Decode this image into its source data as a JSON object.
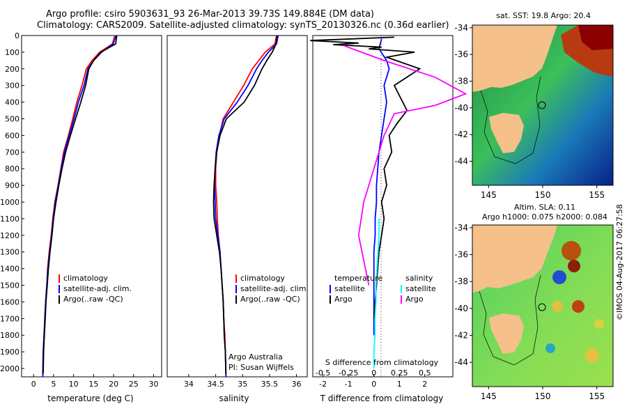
{
  "header": {
    "line1": "Argo profile: csiro 5903631_93 26-Mar-2013 39.73S 149.884E (DM data)",
    "line2": "Climatology: CARS2009. Satellite-adjusted climatology: synTS_20130326.nc (0.36d earlier)"
  },
  "colors": {
    "climatology": "#ff0000",
    "satellite": "#0000ff",
    "argo": "#000000",
    "argo_salinity": "#ff00ff",
    "satellite_salinity": "#00ffff",
    "land": "#f5c08a"
  },
  "chart_data": [
    {
      "type": "line",
      "id": "temperature",
      "xlabel": "temperature (deg C)",
      "ylabel": "",
      "xlim": [
        -3,
        32
      ],
      "ylim": [
        2050,
        0
      ],
      "xticks": [
        "0",
        "5",
        "10",
        "15",
        "20",
        "25",
        "30"
      ],
      "xtick_values": [
        0,
        5,
        10,
        15,
        20,
        25,
        30
      ],
      "yticks": [
        "0",
        "100",
        "200",
        "300",
        "400",
        "500",
        "600",
        "700",
        "800",
        "900",
        "1000",
        "1100",
        "1200",
        "1300",
        "1400",
        "1500",
        "1600",
        "1700",
        "1800",
        "1900",
        "2000"
      ],
      "ytick_values": [
        0,
        100,
        200,
        300,
        400,
        500,
        600,
        700,
        800,
        900,
        1000,
        1100,
        1200,
        1300,
        1400,
        1500,
        1600,
        1700,
        1800,
        1900,
        2000
      ],
      "legend": [
        "climatology",
        "satellite-adj. clim.",
        "Argo(..raw -QC)"
      ],
      "series": [
        {
          "name": "climatology",
          "x": [
            20.3,
            19.7,
            16.5,
            14.6,
            13.2,
            12.1,
            10.8,
            9.8,
            8.7,
            7.5,
            6.8,
            6.1,
            5.3,
            4.8,
            4.4,
            3.9,
            3.5,
            3.3,
            3.0,
            2.8,
            2.6,
            2.4,
            2.3
          ],
          "y": [
            0,
            50,
            100,
            150,
            200,
            300,
            400,
            500,
            600,
            700,
            800,
            900,
            1000,
            1100,
            1200,
            1300,
            1400,
            1500,
            1600,
            1700,
            1800,
            1900,
            2050
          ]
        },
        {
          "name": "satellite-adj. clim.",
          "x": [
            20.6,
            19.9,
            17.0,
            15.0,
            13.6,
            12.6,
            11.2,
            10.1,
            8.9,
            7.7,
            6.9,
            6.2,
            5.4,
            4.9,
            4.5,
            4.0,
            3.6,
            3.3,
            3.0,
            2.8,
            2.6,
            2.4,
            2.3
          ],
          "y": [
            0,
            50,
            100,
            150,
            200,
            300,
            400,
            500,
            600,
            700,
            800,
            900,
            1000,
            1100,
            1200,
            1300,
            1400,
            1500,
            1600,
            1700,
            1800,
            1900,
            2050
          ]
        },
        {
          "name": "Argo(..raw -QC)",
          "x": [
            20.8,
            20.5,
            16.8,
            15.0,
            13.8,
            13.0,
            11.8,
            10.5,
            9.2,
            8.0,
            7.1,
            6.3,
            5.6,
            5.0,
            4.6,
            4.1,
            3.7,
            3.4,
            3.1,
            2.9,
            2.7,
            2.5,
            2.4
          ],
          "y": [
            0,
            50,
            100,
            150,
            200,
            300,
            400,
            500,
            600,
            700,
            800,
            900,
            1000,
            1100,
            1200,
            1300,
            1400,
            1500,
            1600,
            1700,
            1800,
            1900,
            2030
          ]
        }
      ]
    },
    {
      "type": "line",
      "id": "salinity",
      "xlabel": "salinity",
      "ylabel": "",
      "xlim": [
        33.6,
        36.2
      ],
      "ylim": [
        2050,
        0
      ],
      "xticks": [
        "34",
        "34.5",
        "35",
        "35.5",
        "36"
      ],
      "xtick_values": [
        34,
        34.5,
        35,
        35.5,
        36
      ],
      "legend": [
        "climatology",
        "satellite-adj. clim.",
        "Argo(..raw -QC)"
      ],
      "annotation": [
        "Argo Australia",
        "PI: Susan Wijffels"
      ],
      "series": [
        {
          "name": "climatology",
          "x": [
            35.63,
            35.6,
            35.42,
            35.3,
            35.18,
            35.02,
            34.83,
            34.64,
            34.57,
            34.52,
            34.5,
            34.5,
            34.52,
            34.53,
            34.55,
            34.58,
            34.6,
            34.62,
            34.64,
            34.65,
            34.67,
            34.68,
            34.69
          ],
          "y": [
            0,
            50,
            100,
            150,
            200,
            300,
            400,
            500,
            600,
            700,
            800,
            900,
            1000,
            1100,
            1200,
            1300,
            1400,
            1500,
            1600,
            1700,
            1800,
            1900,
            2050
          ]
        },
        {
          "name": "satellite-adj. clim.",
          "x": [
            35.66,
            35.63,
            35.48,
            35.36,
            35.26,
            35.1,
            34.9,
            34.66,
            34.56,
            34.51,
            34.49,
            34.48,
            34.49,
            34.5,
            34.54,
            34.58,
            34.6,
            34.62,
            34.64,
            34.65,
            34.66,
            34.68,
            34.69
          ],
          "y": [
            0,
            50,
            100,
            150,
            200,
            300,
            400,
            500,
            600,
            700,
            800,
            900,
            1000,
            1100,
            1200,
            1300,
            1400,
            1500,
            1600,
            1700,
            1800,
            1900,
            2050
          ]
        },
        {
          "name": "Argo(..raw -QC)",
          "x": [
            35.64,
            35.62,
            35.55,
            35.45,
            35.36,
            35.22,
            35.03,
            34.7,
            34.58,
            34.52,
            34.49,
            34.47,
            34.46,
            34.47,
            34.52,
            34.57,
            34.6,
            34.62,
            34.64,
            34.65,
            34.66,
            34.68,
            34.69
          ],
          "y": [
            0,
            50,
            100,
            150,
            200,
            300,
            400,
            500,
            600,
            700,
            800,
            900,
            1000,
            1100,
            1200,
            1300,
            1400,
            1500,
            1600,
            1700,
            1800,
            1900,
            2030
          ]
        }
      ]
    },
    {
      "type": "line",
      "id": "difference",
      "xlabel": "T difference from climatology",
      "xlabel_top": "S difference from climatology",
      "xlim": [
        -2.4,
        3.1
      ],
      "ylim": [
        2050,
        0
      ],
      "xticks": [
        "-2",
        "-1",
        "0",
        "1",
        "2"
      ],
      "xtick_values": [
        -2,
        -1,
        0,
        1,
        2
      ],
      "s_xticks": [
        "-0.5",
        "-0.25",
        "0",
        "0.25",
        "0.5"
      ],
      "s_xtick_values": [
        -0.5,
        -0.25,
        0,
        0.25,
        0.5
      ],
      "legend": [
        "temperature",
        "satellite",
        "Argo",
        "salinity",
        "satellite",
        "Argo"
      ],
      "series": [
        {
          "name": "T satellite",
          "x": [
            0.3,
            0.2,
            0.5,
            0.6,
            0.4,
            0.5,
            0.4,
            0.3,
            0.2,
            0.15,
            0.1,
            0.1,
            0.05,
            0.05,
            0.0,
            0.0,
            0.0,
            0.0,
            0.0,
            0.0
          ],
          "y": [
            20,
            80,
            150,
            200,
            300,
            400,
            500,
            600,
            700,
            800,
            900,
            1000,
            1100,
            1200,
            1300,
            1400,
            1500,
            1600,
            1700,
            1800
          ]
        },
        {
          "name": "T Argo",
          "x": [
            0.8,
            -2.5,
            -0.6,
            -1.6,
            0.3,
            -0.2,
            1.6,
            0.5,
            1.8,
            0.8,
            1.3,
            0.9,
            0.6,
            0.7,
            0.4,
            0.5,
            0.3,
            0.4,
            0.3,
            0.2,
            0.1,
            0.0
          ],
          "y": [
            10,
            30,
            45,
            55,
            70,
            80,
            100,
            130,
            200,
            300,
            450,
            530,
            600,
            700,
            800,
            900,
            1000,
            1100,
            1200,
            1300,
            1500,
            1700
          ]
        },
        {
          "name": "S satellite",
          "x": [
            0.05,
            0.05,
            0.04,
            0.03,
            0.02,
            0.02,
            0.01,
            0.01,
            0.0,
            0.0
          ],
          "y": [
            1100,
            1200,
            1300,
            1400,
            1500,
            1600,
            1700,
            1800,
            1900,
            2000
          ]
        },
        {
          "name": "S Argo",
          "x": [
            -0.3,
            0.1,
            0.6,
            0.9,
            0.6,
            0.2,
            0.1,
            0.0,
            -0.1,
            -0.15,
            -0.1,
            -0.05
          ],
          "y": [
            60,
            150,
            250,
            350,
            420,
            470,
            600,
            800,
            1000,
            1200,
            1350,
            1500
          ]
        }
      ]
    },
    {
      "type": "heatmap",
      "id": "sst_map",
      "title": "sat. SST: 19.8 Argo: 20.4",
      "xticks": [
        "145",
        "150",
        "155"
      ],
      "yticks": [
        "-34",
        "-36",
        "-38",
        "-40",
        "-42",
        "-44"
      ],
      "marker": {
        "lon": 149.884,
        "lat": -39.73
      }
    },
    {
      "type": "heatmap",
      "id": "sla_map",
      "title": "Altim. SLA: 0.11",
      "subtitle": "Argo h1000: 0.075 h2000: 0.084",
      "xticks": [
        "145",
        "150",
        "155"
      ],
      "yticks": [
        "-34",
        "-36",
        "-38",
        "-40",
        "-42",
        "-44"
      ],
      "marker": {
        "lon": 149.884,
        "lat": -39.73
      }
    }
  ],
  "credit": "©IMOS 04-Aug-2017 06:27:58"
}
